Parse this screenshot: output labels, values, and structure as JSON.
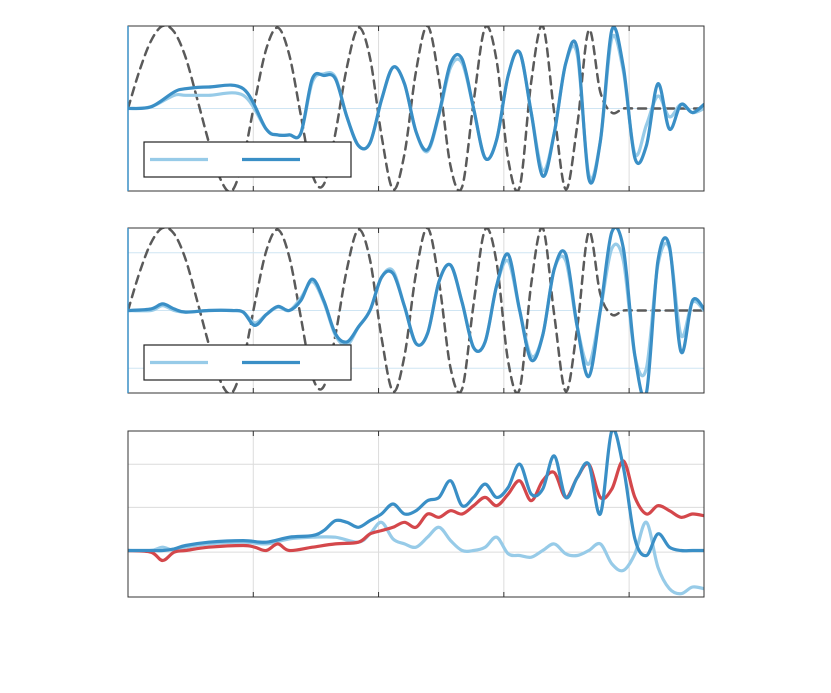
{
  "colors": {
    "light_blue": "#97cbe8",
    "blue": "#3a8fc6",
    "red": "#d4474b",
    "gray_dashed": "#5a5a5a",
    "grid": "#dcdcdc",
    "axis": "#333333",
    "zero_line": "#cfe5f3"
  },
  "chart_data": [
    {
      "type": "line",
      "grid": true,
      "legend_placement": "bottom-left",
      "legend_entries": [
        {
          "color": "#97cbe8",
          "text": ""
        },
        {
          "color": "#3a8fc6",
          "text": ""
        }
      ],
      "xlim": [
        0,
        1
      ],
      "ylim": [
        -1,
        1
      ],
      "series": [
        {
          "style": "dashed",
          "color": "#5a5a5a",
          "x": [
            0.0,
            0.02,
            0.04,
            0.06,
            0.08,
            0.1,
            0.12,
            0.14,
            0.16,
            0.18,
            0.2,
            0.22,
            0.24,
            0.26,
            0.28,
            0.3,
            0.32,
            0.34,
            0.36,
            0.38,
            0.4,
            0.42,
            0.44,
            0.46,
            0.48,
            0.5,
            0.52,
            0.54,
            0.56,
            0.58,
            0.6,
            0.62,
            0.64,
            0.66,
            0.68,
            0.7,
            0.72,
            0.74,
            0.76,
            0.78,
            0.8,
            0.82,
            0.84,
            0.86,
            0.88,
            0.9,
            0.92,
            1.0
          ],
          "y": [
            0.0,
            0.46,
            0.82,
            1.0,
            0.93,
            0.62,
            0.12,
            -0.4,
            -0.85,
            -1.0,
            -0.62,
            0.08,
            0.72,
            0.98,
            0.65,
            -0.08,
            -0.8,
            -0.92,
            -0.3,
            0.5,
            0.98,
            0.62,
            -0.32,
            -0.98,
            -0.55,
            0.45,
            1.0,
            0.35,
            -0.7,
            -0.95,
            0.08,
            0.98,
            0.58,
            -0.62,
            -0.95,
            0.32,
            1.0,
            -0.05,
            -0.98,
            -0.2,
            0.95,
            0.2,
            -0.05,
            0.0,
            0.0,
            0.0,
            0.0,
            0.0
          ]
        },
        {
          "style": "solid",
          "color": "#97cbe8",
          "x": [
            0.0,
            0.04,
            0.08,
            0.1,
            0.14,
            0.2,
            0.24,
            0.26,
            0.28,
            0.3,
            0.32,
            0.34,
            0.36,
            0.38,
            0.4,
            0.42,
            0.44,
            0.46,
            0.48,
            0.5,
            0.52,
            0.54,
            0.56,
            0.58,
            0.6,
            0.62,
            0.64,
            0.66,
            0.68,
            0.7,
            0.72,
            0.74,
            0.76,
            0.78,
            0.8,
            0.82,
            0.84,
            0.86,
            0.88,
            0.9,
            0.92,
            0.94,
            0.96,
            0.98,
            1.0
          ],
          "y": [
            0.0,
            0.02,
            0.16,
            0.16,
            0.16,
            0.16,
            -0.25,
            -0.32,
            -0.32,
            -0.3,
            0.32,
            0.42,
            0.38,
            -0.1,
            -0.45,
            -0.42,
            0.1,
            0.5,
            0.3,
            -0.28,
            -0.52,
            -0.08,
            0.5,
            0.55,
            0.0,
            -0.6,
            -0.38,
            0.4,
            0.68,
            -0.05,
            -0.75,
            -0.3,
            0.55,
            0.65,
            -0.8,
            -0.4,
            0.85,
            0.45,
            -0.55,
            -0.2,
            0.15,
            -0.1,
            0.05,
            -0.05,
            0.0
          ]
        },
        {
          "style": "solid",
          "color": "#3a8fc6",
          "x": [
            0.0,
            0.04,
            0.08,
            0.1,
            0.14,
            0.2,
            0.24,
            0.26,
            0.28,
            0.3,
            0.32,
            0.34,
            0.36,
            0.38,
            0.4,
            0.42,
            0.44,
            0.46,
            0.48,
            0.5,
            0.52,
            0.54,
            0.56,
            0.58,
            0.6,
            0.62,
            0.64,
            0.66,
            0.68,
            0.7,
            0.72,
            0.74,
            0.76,
            0.78,
            0.8,
            0.82,
            0.84,
            0.86,
            0.88,
            0.9,
            0.92,
            0.94,
            0.96,
            0.98,
            1.0
          ],
          "y": [
            0.0,
            0.02,
            0.2,
            0.24,
            0.26,
            0.24,
            -0.25,
            -0.32,
            -0.32,
            -0.3,
            0.36,
            0.4,
            0.36,
            -0.1,
            -0.45,
            -0.42,
            0.1,
            0.5,
            0.3,
            -0.28,
            -0.5,
            -0.06,
            0.55,
            0.6,
            0.0,
            -0.6,
            -0.38,
            0.4,
            0.68,
            -0.05,
            -0.82,
            -0.3,
            0.55,
            0.72,
            -0.85,
            -0.4,
            0.95,
            0.5,
            -0.6,
            -0.45,
            0.3,
            -0.25,
            0.05,
            -0.05,
            0.05
          ]
        }
      ]
    },
    {
      "type": "line",
      "grid": true,
      "legend_placement": "bottom-left",
      "legend_entries": [
        {
          "color": "#97cbe8",
          "text": ""
        },
        {
          "color": "#3a8fc6",
          "text": ""
        }
      ],
      "xlim": [
        0,
        1
      ],
      "ylim": [
        -1,
        1
      ],
      "series": [
        {
          "style": "dashed",
          "color": "#5a5a5a",
          "x": [
            0.0,
            0.02,
            0.04,
            0.06,
            0.08,
            0.1,
            0.12,
            0.14,
            0.16,
            0.18,
            0.2,
            0.22,
            0.24,
            0.26,
            0.28,
            0.3,
            0.32,
            0.34,
            0.36,
            0.38,
            0.4,
            0.42,
            0.44,
            0.46,
            0.48,
            0.5,
            0.52,
            0.54,
            0.56,
            0.58,
            0.6,
            0.62,
            0.64,
            0.66,
            0.68,
            0.7,
            0.72,
            0.74,
            0.76,
            0.78,
            0.8,
            0.82,
            0.84,
            0.86,
            0.88,
            0.9,
            0.92,
            1.0
          ],
          "y": [
            0.0,
            0.46,
            0.82,
            1.0,
            0.93,
            0.62,
            0.12,
            -0.4,
            -0.85,
            -1.0,
            -0.62,
            0.08,
            0.72,
            0.98,
            0.65,
            -0.08,
            -0.8,
            -0.92,
            -0.3,
            0.5,
            0.98,
            0.62,
            -0.32,
            -0.98,
            -0.55,
            0.45,
            1.0,
            0.35,
            -0.7,
            -0.95,
            0.08,
            0.98,
            0.58,
            -0.62,
            -0.95,
            0.32,
            1.0,
            -0.05,
            -0.98,
            -0.2,
            0.95,
            0.2,
            -0.05,
            0.0,
            0.0,
            0.0,
            0.0,
            0.0
          ]
        },
        {
          "style": "solid",
          "color": "#97cbe8",
          "x": [
            0.0,
            0.04,
            0.06,
            0.08,
            0.1,
            0.14,
            0.18,
            0.2,
            0.22,
            0.24,
            0.26,
            0.28,
            0.3,
            0.32,
            0.34,
            0.36,
            0.38,
            0.4,
            0.42,
            0.44,
            0.46,
            0.48,
            0.5,
            0.52,
            0.54,
            0.56,
            0.58,
            0.6,
            0.62,
            0.64,
            0.66,
            0.68,
            0.7,
            0.72,
            0.74,
            0.76,
            0.78,
            0.8,
            0.82,
            0.84,
            0.86,
            0.88,
            0.9,
            0.92,
            0.94,
            0.96,
            0.98,
            1.0
          ],
          "y": [
            0.0,
            0.0,
            0.06,
            0.0,
            -0.02,
            0.0,
            0.0,
            -0.02,
            -0.15,
            -0.05,
            0.04,
            0.0,
            0.15,
            0.35,
            0.1,
            -0.3,
            -0.42,
            -0.2,
            0.0,
            0.4,
            0.48,
            0.05,
            -0.4,
            -0.28,
            0.35,
            0.55,
            0.1,
            -0.45,
            -0.38,
            0.3,
            0.6,
            0.0,
            -0.55,
            -0.3,
            0.5,
            0.6,
            -0.2,
            -0.65,
            0.0,
            0.75,
            0.6,
            -0.55,
            -0.7,
            0.55,
            0.75,
            -0.3,
            0.1,
            0.0
          ]
        },
        {
          "style": "solid",
          "color": "#3a8fc6",
          "x": [
            0.0,
            0.04,
            0.06,
            0.08,
            0.1,
            0.14,
            0.18,
            0.2,
            0.22,
            0.24,
            0.26,
            0.28,
            0.3,
            0.32,
            0.34,
            0.36,
            0.38,
            0.4,
            0.42,
            0.44,
            0.46,
            0.48,
            0.5,
            0.52,
            0.54,
            0.56,
            0.58,
            0.6,
            0.62,
            0.64,
            0.66,
            0.68,
            0.7,
            0.72,
            0.74,
            0.76,
            0.78,
            0.8,
            0.82,
            0.84,
            0.86,
            0.88,
            0.9,
            0.92,
            0.94,
            0.96,
            0.98,
            1.0
          ],
          "y": [
            0.0,
            0.02,
            0.08,
            0.02,
            -0.02,
            0.0,
            0.0,
            -0.02,
            -0.18,
            -0.05,
            0.05,
            0.0,
            0.12,
            0.38,
            0.12,
            -0.28,
            -0.38,
            -0.2,
            0.0,
            0.4,
            0.45,
            0.05,
            -0.4,
            -0.28,
            0.35,
            0.55,
            0.1,
            -0.45,
            -0.38,
            0.3,
            0.68,
            0.0,
            -0.6,
            -0.3,
            0.5,
            0.68,
            -0.2,
            -0.8,
            0.0,
            0.95,
            0.75,
            -0.55,
            -1.0,
            0.6,
            0.78,
            -0.5,
            0.12,
            0.02
          ]
        }
      ]
    },
    {
      "type": "line",
      "grid": true,
      "xlim": [
        0,
        1
      ],
      "ylim": [
        0,
        1
      ],
      "series": [
        {
          "style": "solid",
          "color": "#97cbe8",
          "x": [
            0.0,
            0.04,
            0.06,
            0.08,
            0.1,
            0.14,
            0.2,
            0.24,
            0.28,
            0.32,
            0.36,
            0.4,
            0.42,
            0.44,
            0.46,
            0.48,
            0.5,
            0.52,
            0.54,
            0.56,
            0.58,
            0.6,
            0.62,
            0.64,
            0.66,
            0.68,
            0.7,
            0.72,
            0.74,
            0.76,
            0.78,
            0.8,
            0.82,
            0.84,
            0.86,
            0.88,
            0.9,
            0.92,
            0.94,
            0.96,
            0.98,
            1.0
          ],
          "y": [
            0.28,
            0.28,
            0.3,
            0.28,
            0.3,
            0.32,
            0.33,
            0.32,
            0.35,
            0.36,
            0.36,
            0.33,
            0.38,
            0.45,
            0.35,
            0.32,
            0.3,
            0.36,
            0.42,
            0.34,
            0.28,
            0.28,
            0.3,
            0.36,
            0.26,
            0.25,
            0.24,
            0.28,
            0.32,
            0.26,
            0.25,
            0.28,
            0.32,
            0.2,
            0.16,
            0.26,
            0.45,
            0.18,
            0.05,
            0.02,
            0.06,
            0.05
          ]
        },
        {
          "style": "solid",
          "color": "#d4474b",
          "x": [
            0.0,
            0.04,
            0.06,
            0.08,
            0.1,
            0.14,
            0.2,
            0.22,
            0.24,
            0.26,
            0.28,
            0.32,
            0.36,
            0.4,
            0.42,
            0.44,
            0.46,
            0.48,
            0.5,
            0.52,
            0.54,
            0.56,
            0.58,
            0.6,
            0.62,
            0.64,
            0.66,
            0.68,
            0.7,
            0.72,
            0.74,
            0.76,
            0.78,
            0.8,
            0.82,
            0.84,
            0.86,
            0.88,
            0.9,
            0.92,
            0.94,
            0.96,
            0.98,
            1.0
          ],
          "y": [
            0.28,
            0.27,
            0.22,
            0.27,
            0.28,
            0.3,
            0.31,
            0.3,
            0.28,
            0.32,
            0.28,
            0.3,
            0.32,
            0.33,
            0.38,
            0.4,
            0.42,
            0.45,
            0.42,
            0.5,
            0.48,
            0.52,
            0.5,
            0.55,
            0.6,
            0.55,
            0.62,
            0.7,
            0.58,
            0.7,
            0.75,
            0.6,
            0.72,
            0.8,
            0.6,
            0.65,
            0.82,
            0.6,
            0.5,
            0.55,
            0.52,
            0.48,
            0.5,
            0.49
          ]
        },
        {
          "style": "solid",
          "color": "#3a8fc6",
          "x": [
            0.0,
            0.04,
            0.06,
            0.08,
            0.1,
            0.14,
            0.2,
            0.24,
            0.28,
            0.32,
            0.34,
            0.36,
            0.38,
            0.4,
            0.42,
            0.44,
            0.46,
            0.48,
            0.5,
            0.52,
            0.54,
            0.56,
            0.58,
            0.6,
            0.62,
            0.64,
            0.66,
            0.68,
            0.7,
            0.72,
            0.74,
            0.76,
            0.78,
            0.8,
            0.82,
            0.84,
            0.86,
            0.88,
            0.9,
            0.92,
            0.94,
            0.96,
            0.98,
            1.0
          ],
          "y": [
            0.28,
            0.28,
            0.28,
            0.29,
            0.31,
            0.33,
            0.34,
            0.33,
            0.36,
            0.37,
            0.4,
            0.46,
            0.45,
            0.42,
            0.46,
            0.5,
            0.56,
            0.5,
            0.52,
            0.58,
            0.6,
            0.7,
            0.55,
            0.6,
            0.68,
            0.6,
            0.66,
            0.8,
            0.62,
            0.65,
            0.85,
            0.6,
            0.72,
            0.8,
            0.5,
            1.0,
            0.78,
            0.35,
            0.25,
            0.38,
            0.3,
            0.28,
            0.28,
            0.28
          ]
        }
      ]
    }
  ]
}
